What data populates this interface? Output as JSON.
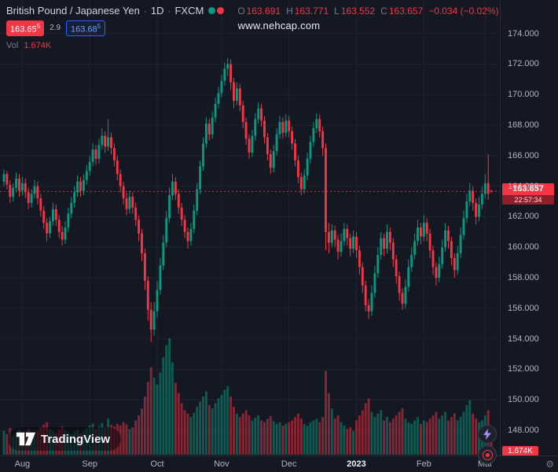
{
  "header": {
    "symbol": "British Pound / Japanese Yen",
    "separator": "·",
    "interval": "1D",
    "exchange": "FXCM",
    "ohlc": {
      "o_label": "O",
      "o": "163.691",
      "h_label": "H",
      "h": "163.771",
      "l_label": "L",
      "l": "163.552",
      "c_label": "C",
      "c": "163.657",
      "change": "−0.034 (−0.02%)"
    },
    "sell": {
      "main": "163.65",
      "sup": "5"
    },
    "spread": "2.9",
    "buy": {
      "main": "163.68",
      "sup": "5"
    },
    "vol_label": "Vol",
    "vol_value": "1.674K"
  },
  "watermark": "www.nehcap.com",
  "price_axis": {
    "labels": [
      "174.000",
      "172.000",
      "170.000",
      "168.000",
      "166.000",
      "164.000",
      "162.000",
      "160.000",
      "158.000",
      "156.000",
      "154.000",
      "152.000",
      "150.000",
      "148.000"
    ],
    "last_price": "163.657",
    "countdown": "22:57:34",
    "volume_badge": "1.674K"
  },
  "logo": {
    "text": "TradingView"
  },
  "icons": {
    "gear": "⚙"
  },
  "colors": {
    "bg": "#141823",
    "up": "#089981",
    "down": "#f23645",
    "grid": "#1c2231",
    "axis_text": "#b2b5be",
    "accent_blue": "#2962ff",
    "bolt": "#a78bfa"
  },
  "chart_data": {
    "type": "candlestick",
    "symbol": "GBP/JPY",
    "interval": "1D",
    "exchange": "FXCM",
    "title": "British Pound / Japanese Yen · 1D · FXCM",
    "y_axis_range": [
      146.5,
      176
    ],
    "grid": true,
    "volume_unit": "K",
    "candle_format": [
      "open",
      "high",
      "low",
      "close",
      "volume"
    ],
    "time_ticks": [
      {
        "label": "Aug",
        "i": 6
      },
      {
        "label": "Sep",
        "i": 28
      },
      {
        "label": "Oct",
        "i": 50
      },
      {
        "label": "Nov",
        "i": 71
      },
      {
        "label": "Dec",
        "i": 93
      },
      {
        "label": "2023",
        "i": 115,
        "major": true
      },
      {
        "label": "Feb",
        "i": 137
      },
      {
        "label": "Mar",
        "i": 157
      }
    ],
    "last": {
      "o": 163.691,
      "h": 163.771,
      "l": 163.552,
      "c": 163.657,
      "change": -0.034,
      "change_pct": -0.02,
      "volume": 1.674
    },
    "candles": [
      [
        164.3,
        165.1,
        164.0,
        164.8,
        2.8
      ],
      [
        164.8,
        165.0,
        163.8,
        164.1,
        2.4
      ],
      [
        164.1,
        164.4,
        162.9,
        163.3,
        3.1
      ],
      [
        163.3,
        164.2,
        163.0,
        163.9,
        2.2
      ],
      [
        163.9,
        164.9,
        163.6,
        164.5,
        2.6
      ],
      [
        164.5,
        164.8,
        163.3,
        163.7,
        2.9
      ],
      [
        163.7,
        164.6,
        163.4,
        164.2,
        2.5
      ],
      [
        164.2,
        164.5,
        163.2,
        163.6,
        2.7
      ],
      [
        163.6,
        163.9,
        162.5,
        162.9,
        3.0
      ],
      [
        162.9,
        163.8,
        162.6,
        163.5,
        2.3
      ],
      [
        163.5,
        164.4,
        163.2,
        164.0,
        2.6
      ],
      [
        164.0,
        164.3,
        162.8,
        163.2,
        2.8
      ],
      [
        163.2,
        163.5,
        162.0,
        162.4,
        3.2
      ],
      [
        162.4,
        162.7,
        161.2,
        161.6,
        3.5
      ],
      [
        161.6,
        161.9,
        160.4,
        160.9,
        3.8
      ],
      [
        160.9,
        162.0,
        160.6,
        161.7,
        3.0
      ],
      [
        161.7,
        162.9,
        161.4,
        162.5,
        2.7
      ],
      [
        162.5,
        162.8,
        161.4,
        161.8,
        2.5
      ],
      [
        161.8,
        162.1,
        160.6,
        161.0,
        2.9
      ],
      [
        161.0,
        161.4,
        160.1,
        160.5,
        3.3
      ],
      [
        160.5,
        161.7,
        160.2,
        161.3,
        2.8
      ],
      [
        161.3,
        162.6,
        161.0,
        162.2,
        2.6
      ],
      [
        162.2,
        163.3,
        161.9,
        162.9,
        2.4
      ],
      [
        162.9,
        164.0,
        162.6,
        163.6,
        2.7
      ],
      [
        163.6,
        164.7,
        163.3,
        164.3,
        2.9
      ],
      [
        164.3,
        164.6,
        163.3,
        163.7,
        2.5
      ],
      [
        163.7,
        164.8,
        163.4,
        164.4,
        2.8
      ],
      [
        164.4,
        165.4,
        164.1,
        165.0,
        3.1
      ],
      [
        165.0,
        166.0,
        164.7,
        165.6,
        3.4
      ],
      [
        165.6,
        166.8,
        165.3,
        166.4,
        3.6
      ],
      [
        166.4,
        166.7,
        165.4,
        165.8,
        3.0
      ],
      [
        165.8,
        167.1,
        165.5,
        166.7,
        3.3
      ],
      [
        166.7,
        167.8,
        166.4,
        167.3,
        3.7
      ],
      [
        167.3,
        167.6,
        166.2,
        166.6,
        3.2
      ],
      [
        166.6,
        168.4,
        166.3,
        167.2,
        4.2
      ],
      [
        167.2,
        167.5,
        166.1,
        166.5,
        3.5
      ],
      [
        166.5,
        166.8,
        165.3,
        165.7,
        3.3
      ],
      [
        165.7,
        166.0,
        164.4,
        164.8,
        3.6
      ],
      [
        164.8,
        165.1,
        163.6,
        164.0,
        3.4
      ],
      [
        164.0,
        164.3,
        162.8,
        163.2,
        3.8
      ],
      [
        163.2,
        163.6,
        162.1,
        162.5,
        3.5
      ],
      [
        162.5,
        163.7,
        162.2,
        163.3,
        3.0
      ],
      [
        163.3,
        163.6,
        162.2,
        162.6,
        3.2
      ],
      [
        162.6,
        162.9,
        161.4,
        161.8,
        4.0
      ],
      [
        161.8,
        162.1,
        160.4,
        160.9,
        4.6
      ],
      [
        160.9,
        161.2,
        159.1,
        159.6,
        5.4
      ],
      [
        159.6,
        159.9,
        157.2,
        157.8,
        6.8
      ],
      [
        157.8,
        158.1,
        155.2,
        155.9,
        8.5
      ],
      [
        155.9,
        156.4,
        153.8,
        154.6,
        10.2
      ],
      [
        154.6,
        156.4,
        154.2,
        155.8,
        9.0
      ],
      [
        155.8,
        157.8,
        155.4,
        157.2,
        8.2
      ],
      [
        157.2,
        159.3,
        156.9,
        158.8,
        9.6
      ],
      [
        158.8,
        160.8,
        158.5,
        160.3,
        11.4
      ],
      [
        160.3,
        162.4,
        160.0,
        161.9,
        12.8
      ],
      [
        161.9,
        163.9,
        161.6,
        163.4,
        13.6
      ],
      [
        163.4,
        164.8,
        163.1,
        164.3,
        10.8
      ],
      [
        164.3,
        164.6,
        163.1,
        163.5,
        8.4
      ],
      [
        163.5,
        163.8,
        162.2,
        162.6,
        7.2
      ],
      [
        162.6,
        162.9,
        161.4,
        161.8,
        6.0
      ],
      [
        161.8,
        162.1,
        160.6,
        161.0,
        5.2
      ],
      [
        161.0,
        161.3,
        159.9,
        160.4,
        4.8
      ],
      [
        160.4,
        161.6,
        160.1,
        161.2,
        4.4
      ],
      [
        161.2,
        162.8,
        160.9,
        162.4,
        4.9
      ],
      [
        162.4,
        164.2,
        162.1,
        163.8,
        5.6
      ],
      [
        163.8,
        165.7,
        163.5,
        165.3,
        6.2
      ],
      [
        165.3,
        167.2,
        165.0,
        166.8,
        6.8
      ],
      [
        166.8,
        168.5,
        166.5,
        168.1,
        7.4
      ],
      [
        168.1,
        168.4,
        167.0,
        167.4,
        5.8
      ],
      [
        167.4,
        168.9,
        167.1,
        168.5,
        5.4
      ],
      [
        168.5,
        169.8,
        168.2,
        169.4,
        6.0
      ],
      [
        169.4,
        170.5,
        169.1,
        170.1,
        6.6
      ],
      [
        170.1,
        171.3,
        169.8,
        170.9,
        7.0
      ],
      [
        170.9,
        172.1,
        170.6,
        171.7,
        7.6
      ],
      [
        171.7,
        172.4,
        171.2,
        172.0,
        8.0
      ],
      [
        172.0,
        172.3,
        170.3,
        170.8,
        6.8
      ],
      [
        170.8,
        171.1,
        169.1,
        169.6,
        5.6
      ],
      [
        169.6,
        170.8,
        169.3,
        170.4,
        4.8
      ],
      [
        170.4,
        170.7,
        168.9,
        169.3,
        4.4
      ],
      [
        169.3,
        169.6,
        167.8,
        168.2,
        4.8
      ],
      [
        168.2,
        168.5,
        166.7,
        167.1,
        5.2
      ],
      [
        167.1,
        167.4,
        165.8,
        166.2,
        4.6
      ],
      [
        166.2,
        167.7,
        165.9,
        167.3,
        4.0
      ],
      [
        167.3,
        168.8,
        167.0,
        168.4,
        4.3
      ],
      [
        168.4,
        169.5,
        168.1,
        169.1,
        4.6
      ],
      [
        169.1,
        169.4,
        167.9,
        168.3,
        4.0
      ],
      [
        168.3,
        168.6,
        166.8,
        167.2,
        3.8
      ],
      [
        167.2,
        167.5,
        165.7,
        166.1,
        4.2
      ],
      [
        166.1,
        166.4,
        164.8,
        165.2,
        4.5
      ],
      [
        165.2,
        166.7,
        164.9,
        166.3,
        3.9
      ],
      [
        166.3,
        167.8,
        166.0,
        167.4,
        3.6
      ],
      [
        167.4,
        168.6,
        167.1,
        168.2,
        3.8
      ],
      [
        168.2,
        168.5,
        167.1,
        167.5,
        3.4
      ],
      [
        167.5,
        168.7,
        167.2,
        168.3,
        3.6
      ],
      [
        168.3,
        168.6,
        167.2,
        167.6,
        3.8
      ],
      [
        167.6,
        167.9,
        166.4,
        166.8,
        4.0
      ],
      [
        166.8,
        167.1,
        165.3,
        165.7,
        4.4
      ],
      [
        165.7,
        166.0,
        164.2,
        164.6,
        4.8
      ],
      [
        164.6,
        164.9,
        163.4,
        163.8,
        4.2
      ],
      [
        163.8,
        165.1,
        163.5,
        164.7,
        3.6
      ],
      [
        164.7,
        166.2,
        164.4,
        165.8,
        3.4
      ],
      [
        165.8,
        167.3,
        165.5,
        166.9,
        3.8
      ],
      [
        166.9,
        168.2,
        166.6,
        167.8,
        4.0
      ],
      [
        167.8,
        168.8,
        167.5,
        168.4,
        4.2
      ],
      [
        168.4,
        168.7,
        167.2,
        167.6,
        3.8
      ],
      [
        167.6,
        167.9,
        166.0,
        166.5,
        4.4
      ],
      [
        166.5,
        166.8,
        159.8,
        161.0,
        9.8
      ],
      [
        161.0,
        161.6,
        159.6,
        160.3,
        7.2
      ],
      [
        160.3,
        161.5,
        160.0,
        161.1,
        5.4
      ],
      [
        161.1,
        161.4,
        160.0,
        160.5,
        4.2
      ],
      [
        160.5,
        160.8,
        159.2,
        159.7,
        4.6
      ],
      [
        159.7,
        160.9,
        159.4,
        160.4,
        3.8
      ],
      [
        160.4,
        161.6,
        160.1,
        161.2,
        3.4
      ],
      [
        161.2,
        161.5,
        160.1,
        160.6,
        3.0
      ],
      [
        160.6,
        160.9,
        159.4,
        159.9,
        3.2
      ],
      [
        159.9,
        161.1,
        159.6,
        160.7,
        2.8
      ],
      [
        160.7,
        161.0,
        159.3,
        159.8,
        4.0
      ],
      [
        159.8,
        160.1,
        158.2,
        158.7,
        4.6
      ],
      [
        158.7,
        159.0,
        157.0,
        157.5,
        5.2
      ],
      [
        157.5,
        157.8,
        155.8,
        156.2,
        6.0
      ],
      [
        156.2,
        156.6,
        155.3,
        155.8,
        6.6
      ],
      [
        155.8,
        157.5,
        155.5,
        157.0,
        5.0
      ],
      [
        157.0,
        158.8,
        156.7,
        158.3,
        4.4
      ],
      [
        158.3,
        160.0,
        158.0,
        159.5,
        4.8
      ],
      [
        159.5,
        161.0,
        159.2,
        160.6,
        5.2
      ],
      [
        160.6,
        160.9,
        159.4,
        159.9,
        4.0
      ],
      [
        159.9,
        161.5,
        159.6,
        161.0,
        4.4
      ],
      [
        161.0,
        161.3,
        159.8,
        160.3,
        3.8
      ],
      [
        160.3,
        160.6,
        158.7,
        159.2,
        4.2
      ],
      [
        159.2,
        159.5,
        157.6,
        158.1,
        4.6
      ],
      [
        158.1,
        158.4,
        156.5,
        157.0,
        5.0
      ],
      [
        157.0,
        157.3,
        155.9,
        156.3,
        5.4
      ],
      [
        156.3,
        157.9,
        156.0,
        157.4,
        4.2
      ],
      [
        157.4,
        159.2,
        157.1,
        158.7,
        3.8
      ],
      [
        158.7,
        160.0,
        158.4,
        159.5,
        3.6
      ],
      [
        159.5,
        160.9,
        159.2,
        160.4,
        4.0
      ],
      [
        160.4,
        161.8,
        160.1,
        161.3,
        4.4
      ],
      [
        161.3,
        161.6,
        160.2,
        160.7,
        3.6
      ],
      [
        160.7,
        162.1,
        160.4,
        161.6,
        4.0
      ],
      [
        161.6,
        161.9,
        160.4,
        160.9,
        3.8
      ],
      [
        160.9,
        161.2,
        159.3,
        159.8,
        4.2
      ],
      [
        159.8,
        160.1,
        158.2,
        158.7,
        4.6
      ],
      [
        158.7,
        159.0,
        157.5,
        158.0,
        5.0
      ],
      [
        158.0,
        159.4,
        157.7,
        158.9,
        4.2
      ],
      [
        158.9,
        160.5,
        158.6,
        160.0,
        4.6
      ],
      [
        160.0,
        161.6,
        159.7,
        161.1,
        5.0
      ],
      [
        161.1,
        161.4,
        159.9,
        160.4,
        4.0
      ],
      [
        160.4,
        160.7,
        158.8,
        159.3,
        4.4
      ],
      [
        159.3,
        159.6,
        158.0,
        158.5,
        4.8
      ],
      [
        158.5,
        160.1,
        158.2,
        159.6,
        4.0
      ],
      [
        159.6,
        161.3,
        159.3,
        160.8,
        4.4
      ],
      [
        160.8,
        162.4,
        160.5,
        161.9,
        5.0
      ],
      [
        161.9,
        163.5,
        161.6,
        163.0,
        5.8
      ],
      [
        163.0,
        164.2,
        162.7,
        163.7,
        6.4
      ],
      [
        163.7,
        164.0,
        162.4,
        162.9,
        4.8
      ],
      [
        162.9,
        163.2,
        161.5,
        162.0,
        4.2
      ],
      [
        162.0,
        163.3,
        161.7,
        162.8,
        3.8
      ],
      [
        162.8,
        164.0,
        162.5,
        163.5,
        4.0
      ],
      [
        163.5,
        164.8,
        163.2,
        164.2,
        4.6
      ],
      [
        164.2,
        166.1,
        163.1,
        163.5,
        5.2
      ],
      [
        163.691,
        163.771,
        163.552,
        163.657,
        1.674
      ]
    ]
  }
}
